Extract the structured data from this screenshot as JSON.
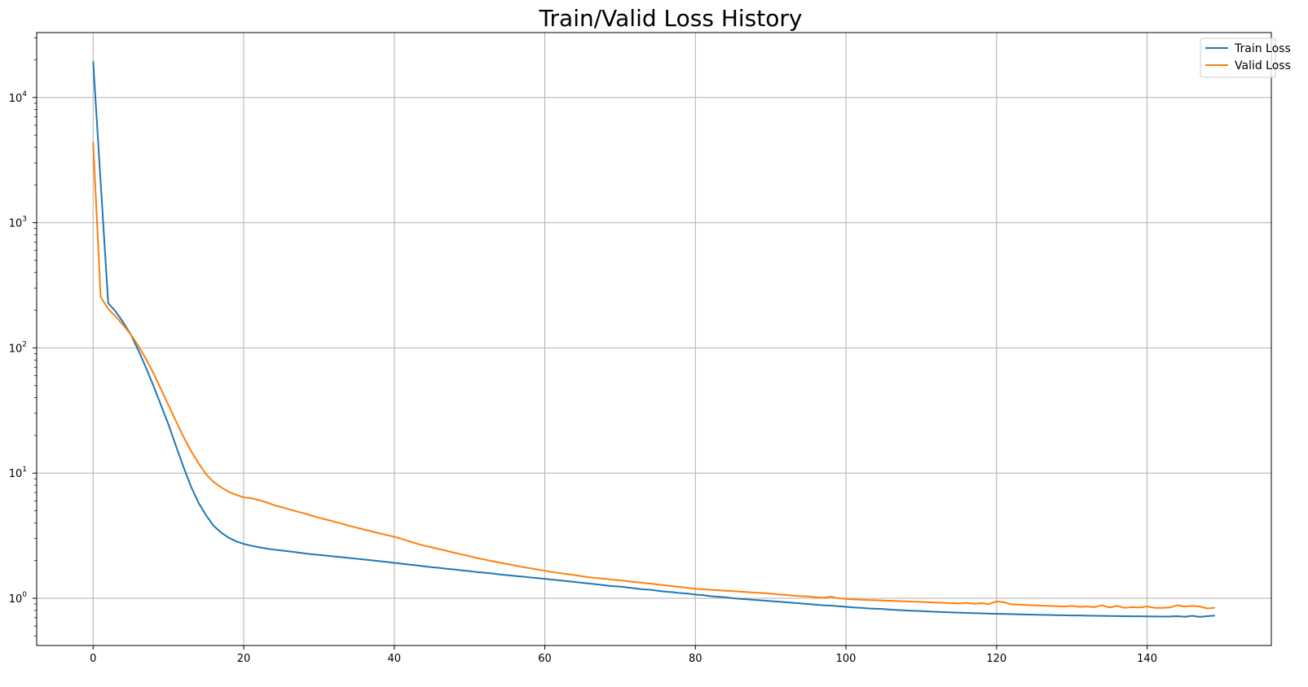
{
  "chart_data": {
    "type": "line",
    "title": "Train/Valid Loss History",
    "xlabel": "",
    "ylabel": "",
    "yscale": "log",
    "xlim": [
      -7.5,
      156.5
    ],
    "ylim": [
      0.42,
      33000
    ],
    "grid": true,
    "legend_position": "top-right",
    "x_ticks": [
      0,
      20,
      40,
      60,
      80,
      100,
      120,
      140
    ],
    "y_ticks": [
      {
        "value": 1,
        "base": "10",
        "exp": "0"
      },
      {
        "value": 10,
        "base": "10",
        "exp": "1"
      },
      {
        "value": 100,
        "base": "10",
        "exp": "2"
      },
      {
        "value": 1000,
        "base": "10",
        "exp": "3"
      },
      {
        "value": 10000,
        "base": "10",
        "exp": "4"
      }
    ],
    "x_start": 0,
    "series": [
      {
        "name": "Train Loss",
        "color": "#1f77b4",
        "values": [
          19500,
          2100,
          228,
          195,
          160,
          128,
          96,
          70,
          50,
          35,
          24.5,
          16.5,
          11.2,
          7.8,
          5.8,
          4.6,
          3.8,
          3.35,
          3.05,
          2.85,
          2.72,
          2.63,
          2.56,
          2.5,
          2.45,
          2.41,
          2.37,
          2.33,
          2.29,
          2.25,
          2.22,
          2.19,
          2.16,
          2.13,
          2.1,
          2.07,
          2.04,
          2.01,
          1.98,
          1.95,
          1.92,
          1.89,
          1.86,
          1.83,
          1.8,
          1.77,
          1.75,
          1.72,
          1.7,
          1.67,
          1.65,
          1.62,
          1.6,
          1.58,
          1.55,
          1.53,
          1.51,
          1.49,
          1.47,
          1.45,
          1.43,
          1.41,
          1.39,
          1.37,
          1.35,
          1.33,
          1.31,
          1.29,
          1.27,
          1.25,
          1.24,
          1.22,
          1.2,
          1.18,
          1.17,
          1.15,
          1.13,
          1.12,
          1.1,
          1.09,
          1.07,
          1.06,
          1.04,
          1.03,
          1.02,
          1.0,
          0.99,
          0.98,
          0.97,
          0.96,
          0.95,
          0.94,
          0.93,
          0.92,
          0.91,
          0.9,
          0.89,
          0.88,
          0.875,
          0.865,
          0.855,
          0.845,
          0.84,
          0.83,
          0.825,
          0.82,
          0.812,
          0.805,
          0.8,
          0.795,
          0.79,
          0.785,
          0.78,
          0.776,
          0.772,
          0.768,
          0.765,
          0.762,
          0.758,
          0.755,
          0.752,
          0.75,
          0.747,
          0.745,
          0.742,
          0.74,
          0.738,
          0.736,
          0.734,
          0.732,
          0.73,
          0.729,
          0.727,
          0.726,
          0.724,
          0.723,
          0.721,
          0.72,
          0.719,
          0.718,
          0.717,
          0.716,
          0.715,
          0.716,
          0.72,
          0.712,
          0.725,
          0.71,
          0.72,
          0.728
        ]
      },
      {
        "name": "Valid Loss",
        "color": "#ff7f0e",
        "values": [
          4400,
          255,
          205,
          178,
          152,
          128,
          104,
          82,
          63,
          47,
          35,
          26,
          19.5,
          15,
          12,
          9.8,
          8.5,
          7.7,
          7.1,
          6.7,
          6.4,
          6.3,
          6.1,
          5.85,
          5.55,
          5.35,
          5.15,
          4.95,
          4.78,
          4.58,
          4.4,
          4.25,
          4.1,
          3.95,
          3.8,
          3.67,
          3.54,
          3.42,
          3.31,
          3.2,
          3.1,
          2.98,
          2.85,
          2.73,
          2.63,
          2.55,
          2.47,
          2.39,
          2.31,
          2.24,
          2.17,
          2.1,
          2.04,
          1.98,
          1.93,
          1.88,
          1.83,
          1.78,
          1.74,
          1.7,
          1.66,
          1.62,
          1.59,
          1.56,
          1.53,
          1.5,
          1.47,
          1.45,
          1.43,
          1.41,
          1.39,
          1.37,
          1.35,
          1.33,
          1.31,
          1.29,
          1.27,
          1.25,
          1.23,
          1.21,
          1.19,
          1.18,
          1.17,
          1.16,
          1.15,
          1.14,
          1.13,
          1.12,
          1.11,
          1.1,
          1.09,
          1.075,
          1.065,
          1.05,
          1.04,
          1.035,
          1.02,
          1.01,
          1.03,
          1.0,
          0.99,
          0.98,
          0.975,
          0.97,
          0.965,
          0.96,
          0.955,
          0.95,
          0.945,
          0.94,
          0.935,
          0.93,
          0.925,
          0.92,
          0.915,
          0.91,
          0.92,
          0.905,
          0.915,
          0.9,
          0.945,
          0.93,
          0.895,
          0.89,
          0.885,
          0.88,
          0.875,
          0.87,
          0.865,
          0.86,
          0.87,
          0.855,
          0.86,
          0.85,
          0.88,
          0.845,
          0.87,
          0.84,
          0.85,
          0.845,
          0.86,
          0.84,
          0.84,
          0.845,
          0.88,
          0.86,
          0.87,
          0.86,
          0.83,
          0.84
        ]
      }
    ]
  }
}
